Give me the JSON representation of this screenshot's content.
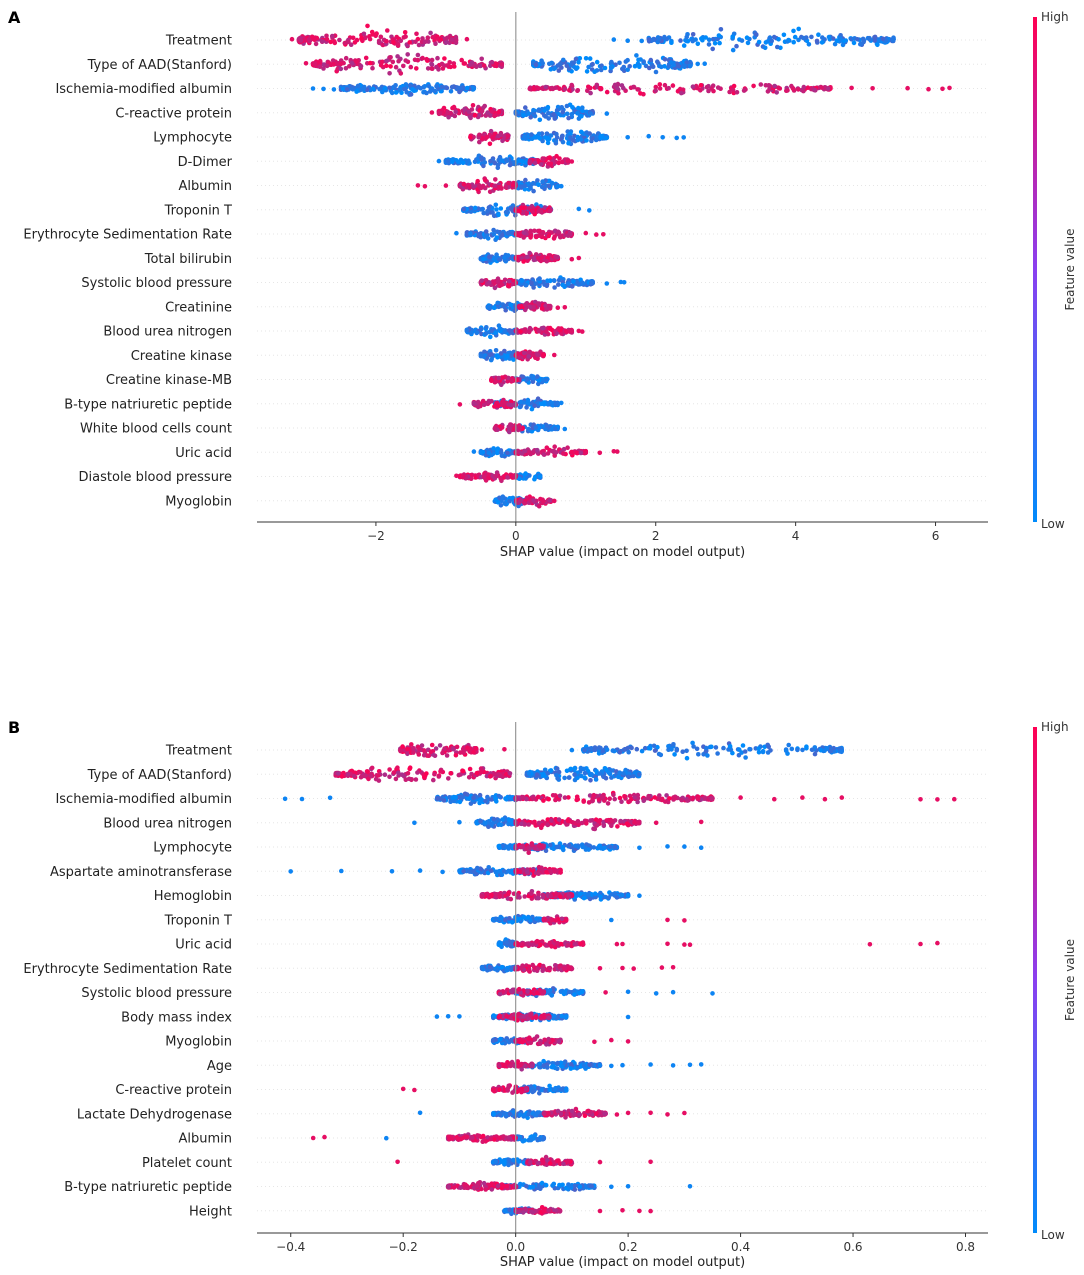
{
  "colors": {
    "high": "#ff0052",
    "low": "#008bfb",
    "mid": "#8a3ff0"
  },
  "chart_data": [
    {
      "panel": "A",
      "type": "beeswarm",
      "xlabel": "SHAP value (impact on model output)",
      "xlim": [
        -3.7,
        6.75
      ],
      "xticks": [
        -2,
        0,
        2,
        4,
        6
      ],
      "xtick_labels": [
        "−2",
        "0",
        "2",
        "4",
        "6"
      ],
      "colorbar": {
        "title": "Feature value",
        "high": "High",
        "low": "Low"
      },
      "features": [
        {
          "name": "Treatment",
          "core_high": [
            -3.1,
            -0.85
          ],
          "core_low": [
            1.9,
            5.4
          ],
          "out_high": [
            -3.2,
            -2.7,
            -0.7
          ],
          "out_low": [
            1.4,
            1.6,
            1.8
          ],
          "thick": 1.0
        },
        {
          "name": "Type of AAD(Stanford)",
          "core_high": [
            -2.9,
            -0.2
          ],
          "core_low": [
            0.25,
            2.5
          ],
          "out_high": [
            -3.0,
            -2.5
          ],
          "out_low": [
            2.6,
            2.7
          ],
          "thick": 1.0
        },
        {
          "name": "Ischemia-modified albumin",
          "core_high": [
            0.2,
            4.5
          ],
          "core_low": [
            -2.5,
            -0.6
          ],
          "out_high": [
            4.8,
            5.1,
            5.6,
            5.9,
            6.1,
            6.2
          ],
          "out_low": [
            -2.9,
            -2.75,
            -2.6
          ],
          "thick": 0.6
        },
        {
          "name": "C-reactive protein",
          "core_high": [
            -1.1,
            -0.2
          ],
          "core_low": [
            0.0,
            1.1
          ],
          "out_high": [
            -1.2
          ],
          "out_low": [
            1.3
          ],
          "thick": 0.8
        },
        {
          "name": "Lymphocyte",
          "core_high": [
            -0.65,
            -0.1
          ],
          "core_low": [
            0.1,
            1.3
          ],
          "out_high": [],
          "out_low": [
            1.6,
            1.9,
            2.1,
            2.3,
            2.4
          ],
          "thick": 0.7
        },
        {
          "name": "D-Dimer",
          "core_high": [
            0.2,
            0.75
          ],
          "core_low": [
            -1.0,
            0.3
          ],
          "out_high": [
            0.8
          ],
          "out_low": [
            -1.1
          ],
          "thick": 0.6
        },
        {
          "name": "Albumin",
          "core_high": [
            -0.8,
            0.0
          ],
          "core_low": [
            0.0,
            0.6
          ],
          "out_high": [
            -1.4,
            -1.3,
            -1.0
          ],
          "out_low": [
            0.65
          ],
          "thick": 0.7
        },
        {
          "name": "Troponin T",
          "core_high": [
            0.0,
            0.5
          ],
          "core_low": [
            -0.75,
            0.5
          ],
          "out_high": [],
          "out_low": [
            0.9,
            1.05
          ],
          "thick": 0.6
        },
        {
          "name": "Erythrocyte Sedimentation Rate",
          "core_high": [
            0.0,
            0.8
          ],
          "core_low": [
            -0.7,
            0.0
          ],
          "out_high": [
            1.0,
            1.15,
            1.25
          ],
          "out_low": [
            -0.85
          ],
          "thick": 0.6
        },
        {
          "name": "Total bilirubin",
          "core_high": [
            0.0,
            0.6
          ],
          "core_low": [
            -0.5,
            0.0
          ],
          "out_high": [
            0.8,
            0.9
          ],
          "out_low": [],
          "thick": 0.5
        },
        {
          "name": "Systolic blood pressure",
          "core_high": [
            -0.5,
            0.0
          ],
          "core_low": [
            0.0,
            1.1
          ],
          "out_high": [],
          "out_low": [
            1.3,
            1.5,
            1.55
          ],
          "thick": 0.6
        },
        {
          "name": "Creatinine",
          "core_high": [
            0.05,
            0.5
          ],
          "core_low": [
            -0.4,
            0.1
          ],
          "out_high": [
            0.6,
            0.7
          ],
          "out_low": [],
          "thick": 0.5
        },
        {
          "name": "Blood urea nitrogen",
          "core_high": [
            0.0,
            0.8
          ],
          "core_low": [
            -0.7,
            0.0
          ],
          "out_high": [
            0.9,
            0.95
          ],
          "out_low": [],
          "thick": 0.5
        },
        {
          "name": "Creatine kinase",
          "core_high": [
            0.0,
            0.4
          ],
          "core_low": [
            -0.5,
            0.1
          ],
          "out_high": [
            0.55
          ],
          "out_low": [],
          "thick": 0.6
        },
        {
          "name": "Creatine kinase-MB",
          "core_high": [
            -0.35,
            0.05
          ],
          "core_low": [
            0.0,
            0.45
          ],
          "out_high": [],
          "out_low": [],
          "thick": 0.5
        },
        {
          "name": "B-type natriuretic peptide",
          "core_high": [
            -0.6,
            0.0
          ],
          "core_low": [
            -0.3,
            0.6
          ],
          "out_high": [
            -0.8
          ],
          "out_low": [
            0.65
          ],
          "thick": 0.5
        },
        {
          "name": "White blood cells count",
          "core_high": [
            -0.3,
            0.1
          ],
          "core_low": [
            0.0,
            0.6
          ],
          "out_high": [],
          "out_low": [
            0.7
          ],
          "thick": 0.5
        },
        {
          "name": "Uric acid",
          "core_high": [
            0.0,
            1.0
          ],
          "core_low": [
            -0.5,
            0.0
          ],
          "out_high": [
            1.2,
            1.4,
            1.45
          ],
          "out_low": [
            -0.6
          ],
          "thick": 0.5
        },
        {
          "name": "Diastole blood pressure",
          "core_high": [
            -0.8,
            0.0
          ],
          "core_low": [
            0.0,
            0.35
          ],
          "out_high": [
            -0.85
          ],
          "out_low": [],
          "thick": 0.5
        },
        {
          "name": "Myoglobin",
          "core_high": [
            0.0,
            0.5
          ],
          "core_low": [
            -0.3,
            0.15
          ],
          "out_high": [
            0.55
          ],
          "out_low": [],
          "thick": 0.5
        }
      ]
    },
    {
      "panel": "B",
      "type": "beeswarm",
      "xlabel": "SHAP value (impact on model output)",
      "xlim": [
        -0.46,
        0.84
      ],
      "xticks": [
        -0.4,
        -0.2,
        0.0,
        0.2,
        0.4,
        0.6,
        0.8
      ],
      "xtick_labels": [
        "−0.4",
        "−0.2",
        "0.0",
        "0.2",
        "0.4",
        "0.6",
        "0.8"
      ],
      "colorbar": {
        "title": "Feature value",
        "high": "High",
        "low": "Low"
      },
      "features": [
        {
          "name": "Treatment",
          "core_high": [
            -0.205,
            -0.07
          ],
          "core_low": [
            0.12,
            0.58
          ],
          "out_high": [
            -0.06,
            -0.02
          ],
          "out_low": [
            0.1
          ],
          "thick": 0.8
        },
        {
          "name": "Type of AAD(Stanford)",
          "core_high": [
            -0.32,
            -0.01
          ],
          "core_low": [
            0.02,
            0.22
          ],
          "out_high": [],
          "out_low": [],
          "thick": 0.8
        },
        {
          "name": "Ischemia-modified albumin",
          "core_high": [
            0.0,
            0.35
          ],
          "core_low": [
            -0.14,
            0.0
          ],
          "out_high": [
            0.4,
            0.46,
            0.51,
            0.55,
            0.58,
            0.72,
            0.75,
            0.78
          ],
          "out_low": [
            -0.41,
            -0.38,
            -0.33
          ],
          "thick": 0.5
        },
        {
          "name": "Blood urea nitrogen",
          "core_high": [
            0.0,
            0.22
          ],
          "core_low": [
            -0.07,
            0.0
          ],
          "out_high": [
            0.25,
            0.33
          ],
          "out_low": [
            -0.18,
            -0.1
          ],
          "thick": 0.5
        },
        {
          "name": "Lymphocyte",
          "core_high": [
            0.0,
            0.05
          ],
          "core_low": [
            -0.03,
            0.18
          ],
          "out_high": [],
          "out_low": [
            0.22,
            0.27,
            0.3,
            0.33
          ],
          "thick": 0.4
        },
        {
          "name": "Aspartate aminotransferase",
          "core_high": [
            0.0,
            0.08
          ],
          "core_low": [
            -0.1,
            0.04
          ],
          "out_high": [],
          "out_low": [
            -0.4,
            -0.31,
            -0.22,
            -0.17,
            -0.13
          ],
          "thick": 0.4
        },
        {
          "name": "Hemoglobin",
          "core_high": [
            -0.06,
            0.1
          ],
          "core_low": [
            0.05,
            0.2
          ],
          "out_high": [],
          "out_low": [
            0.22
          ],
          "thick": 0.4
        },
        {
          "name": "Troponin T",
          "core_high": [
            0.05,
            0.09
          ],
          "core_low": [
            -0.04,
            0.05
          ],
          "out_high": [
            0.27,
            0.3
          ],
          "out_low": [
            0.17
          ],
          "thick": 0.4
        },
        {
          "name": "Uric acid",
          "core_high": [
            0.0,
            0.12
          ],
          "core_low": [
            -0.03,
            0.0
          ],
          "out_high": [
            0.18,
            0.19,
            0.27,
            0.3,
            0.31,
            0.63,
            0.72,
            0.75
          ],
          "out_low": [],
          "thick": 0.4
        },
        {
          "name": "Erythrocyte Sedimentation Rate",
          "core_high": [
            0.0,
            0.1
          ],
          "core_low": [
            -0.06,
            0.0
          ],
          "out_high": [
            0.15,
            0.19,
            0.21,
            0.26,
            0.28
          ],
          "out_low": [],
          "thick": 0.4
        },
        {
          "name": "Systolic blood pressure",
          "core_high": [
            -0.03,
            0.05
          ],
          "core_low": [
            0.0,
            0.12
          ],
          "out_high": [
            0.16
          ],
          "out_low": [
            0.2,
            0.25,
            0.28,
            0.35
          ],
          "thick": 0.4
        },
        {
          "name": "Body mass index",
          "core_high": [
            -0.03,
            0.06
          ],
          "core_low": [
            -0.04,
            0.09
          ],
          "out_high": [],
          "out_low": [
            -0.14,
            -0.12,
            -0.1,
            0.2
          ],
          "thick": 0.4
        },
        {
          "name": "Myoglobin",
          "core_high": [
            0.0,
            0.08
          ],
          "core_low": [
            -0.04,
            0.02
          ],
          "out_high": [
            0.14,
            0.17,
            0.2
          ],
          "out_low": [],
          "thick": 0.4
        },
        {
          "name": "Age",
          "core_high": [
            -0.03,
            0.03
          ],
          "core_low": [
            0.0,
            0.15
          ],
          "out_high": [],
          "out_low": [
            0.17,
            0.19,
            0.24,
            0.28,
            0.31,
            0.33
          ],
          "thick": 0.4
        },
        {
          "name": "C-reactive protein",
          "core_high": [
            -0.04,
            0.02
          ],
          "core_low": [
            0.0,
            0.09
          ],
          "out_high": [
            -0.2,
            -0.18
          ],
          "out_low": [],
          "thick": 0.4
        },
        {
          "name": "Lactate Dehydrogenase",
          "core_high": [
            0.05,
            0.16
          ],
          "core_low": [
            -0.04,
            0.05
          ],
          "out_high": [
            0.18,
            0.2,
            0.24,
            0.27,
            0.3
          ],
          "out_low": [
            -0.17
          ],
          "thick": 0.4
        },
        {
          "name": "Albumin",
          "core_high": [
            -0.12,
            0.0
          ],
          "core_low": [
            0.0,
            0.05
          ],
          "out_high": [
            -0.36,
            -0.34
          ],
          "out_low": [
            -0.23
          ],
          "thick": 0.4
        },
        {
          "name": "Platelet count",
          "core_high": [
            0.02,
            0.1
          ],
          "core_low": [
            -0.04,
            0.03
          ],
          "out_high": [
            -0.21,
            0.15,
            0.24
          ],
          "out_low": [],
          "thick": 0.4
        },
        {
          "name": "B-type natriuretic peptide",
          "core_high": [
            -0.12,
            0.0
          ],
          "core_low": [
            -0.03,
            0.14
          ],
          "out_high": [],
          "out_low": [
            0.17,
            0.2,
            0.31
          ],
          "thick": 0.4
        },
        {
          "name": "Height",
          "core_high": [
            0.0,
            0.08
          ],
          "core_low": [
            -0.02,
            0.03
          ],
          "out_high": [
            0.15,
            0.19,
            0.22,
            0.24
          ],
          "out_low": [],
          "thick": 0.35
        }
      ]
    }
  ]
}
